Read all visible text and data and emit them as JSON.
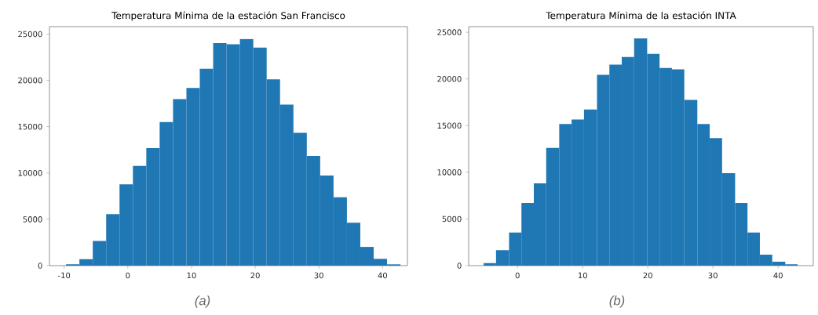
{
  "chart_data": [
    {
      "type": "histogram",
      "title": "Temperatura Mínima de la estación San Francisco",
      "bins": [
        -9.7,
        -7.6,
        -5.5,
        -3.4,
        -1.3,
        0.8,
        2.9,
        5.0,
        7.1,
        9.2,
        11.3,
        13.4,
        15.5,
        17.6,
        19.7,
        21.8,
        23.9,
        26.0,
        28.1,
        30.2,
        32.3,
        34.4,
        36.5,
        38.6,
        40.7,
        42.8
      ],
      "values": [
        140,
        700,
        2670,
        5570,
        8770,
        10770,
        12680,
        15500,
        17970,
        19180,
        21260,
        24020,
        23900,
        24470,
        23540,
        20110,
        17380,
        14340,
        11840,
        9730,
        7370,
        4640,
        2020,
        730,
        140
      ],
      "color": "#1f77b4",
      "xlim": [
        -12.3,
        43.9
      ],
      "ylim": [
        0,
        25800
      ],
      "xticks": [
        -10,
        0,
        10,
        20,
        30,
        40
      ],
      "yticks": [
        0,
        5000,
        10000,
        15000,
        20000,
        25000
      ],
      "annotations": [
        "(a)"
      ]
    },
    {
      "type": "histogram",
      "title": "Temperatura Mínima de la estación INTA",
      "bins": [
        -5.2,
        -3.3,
        -1.3,
        0.6,
        2.5,
        4.4,
        6.4,
        8.3,
        10.2,
        12.2,
        14.1,
        16.0,
        17.9,
        19.9,
        21.8,
        23.7,
        25.6,
        27.6,
        29.5,
        31.4,
        33.4,
        35.3,
        37.2,
        39.1,
        41.1,
        43.0
      ],
      "values": [
        280,
        1650,
        3550,
        6710,
        8810,
        12610,
        15180,
        15660,
        16720,
        20440,
        21530,
        22340,
        24330,
        22680,
        21170,
        21030,
        17760,
        15180,
        13650,
        9900,
        6710,
        3550,
        1170,
        420,
        140
      ],
      "color": "#1f77b4",
      "xlim": [
        -7.5,
        45.4
      ],
      "ylim": [
        0,
        25600
      ],
      "xticks": [
        0,
        10,
        20,
        30,
        40
      ],
      "yticks": [
        0,
        5000,
        10000,
        15000,
        20000,
        25000
      ],
      "annotations": [
        "(b)"
      ]
    }
  ]
}
